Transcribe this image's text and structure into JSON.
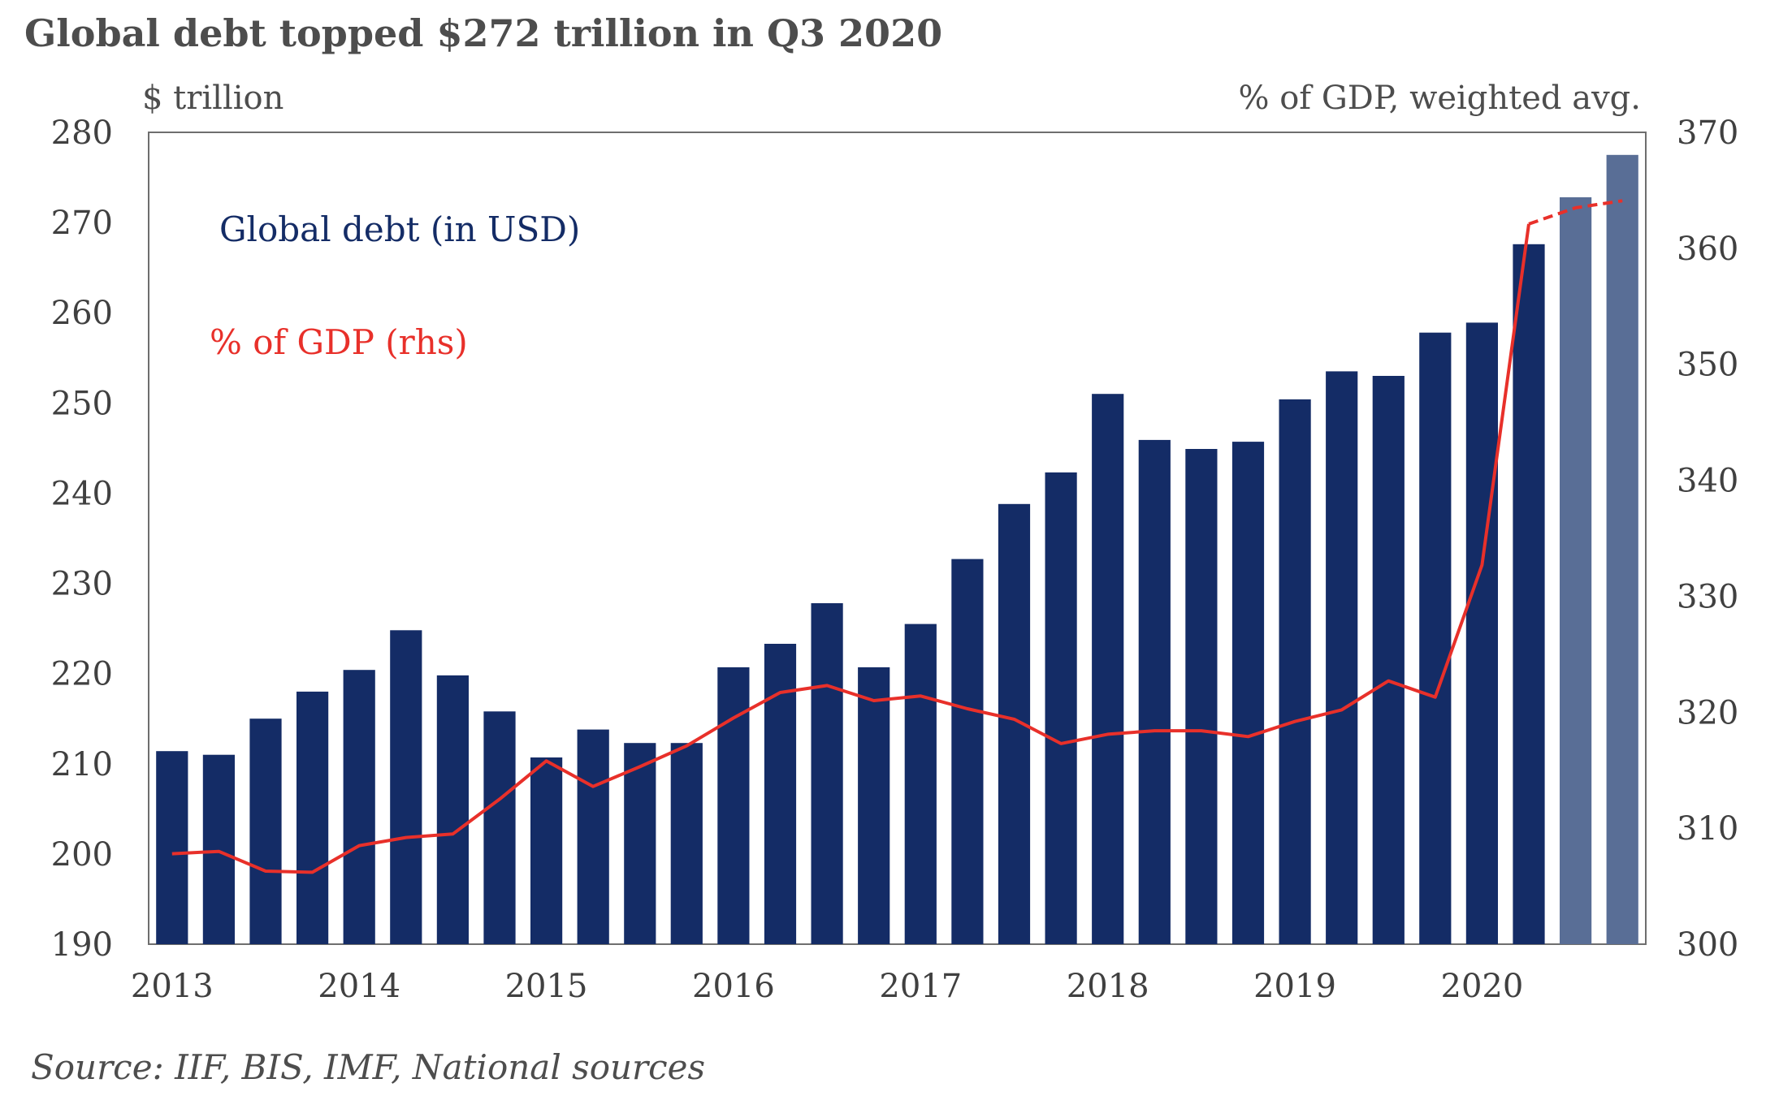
{
  "chart_data": {
    "type": "bar",
    "title": "Global debt topped $272 trillion in Q3 2020",
    "ylabel_left": "$ trillion",
    "ylabel_right": "% of GDP, weighted avg.",
    "source": "Source: IIF, BIS, IMF, National sources",
    "ylim": [
      190,
      280
    ],
    "ylim_right": [
      300,
      370
    ],
    "yticks": [
      "280",
      "270",
      "260",
      "250",
      "240",
      "230",
      "220",
      "210",
      "200",
      "190"
    ],
    "yticks_right": [
      "370",
      "360",
      "350",
      "340",
      "330",
      "320",
      "310",
      "300"
    ],
    "xtick_labels": [
      "2013",
      "2014",
      "2015",
      "2016",
      "2017",
      "2018",
      "2019",
      "2020"
    ],
    "quarters_per_year": 4,
    "series": [
      {
        "name": "Global debt (in USD)",
        "type": "bar",
        "axis": "left",
        "color": "#142c66",
        "estimate_color": "#596e96",
        "values": [
          211.4,
          211.0,
          215.0,
          218.0,
          220.4,
          224.8,
          219.8,
          215.8,
          210.7,
          213.8,
          212.3,
          212.3,
          220.7,
          223.3,
          227.8,
          220.7,
          225.5,
          232.7,
          238.8,
          242.3,
          251.0,
          245.9,
          244.9,
          245.7,
          250.4,
          253.5,
          253.0,
          257.8,
          258.9,
          267.6,
          272.8,
          277.5
        ],
        "estimated": [
          false,
          false,
          false,
          false,
          false,
          false,
          false,
          false,
          false,
          false,
          false,
          false,
          false,
          false,
          false,
          false,
          false,
          false,
          false,
          false,
          false,
          false,
          false,
          false,
          false,
          false,
          false,
          false,
          false,
          false,
          true,
          true
        ]
      },
      {
        "name": "% of GDP (rhs)",
        "type": "line",
        "axis": "right",
        "color": "#e8302a",
        "values": [
          307.8,
          308.0,
          306.3,
          306.2,
          308.5,
          309.2,
          309.5,
          312.5,
          315.8,
          313.6,
          315.3,
          317.1,
          319.5,
          321.7,
          322.3,
          321.0,
          321.4,
          320.3,
          319.4,
          317.3,
          318.1,
          318.4,
          318.4,
          317.9,
          319.2,
          320.2,
          322.7,
          321.3,
          332.7,
          362.1,
          363.5,
          364.1
        ],
        "dashed_from_index": 29
      }
    ]
  }
}
